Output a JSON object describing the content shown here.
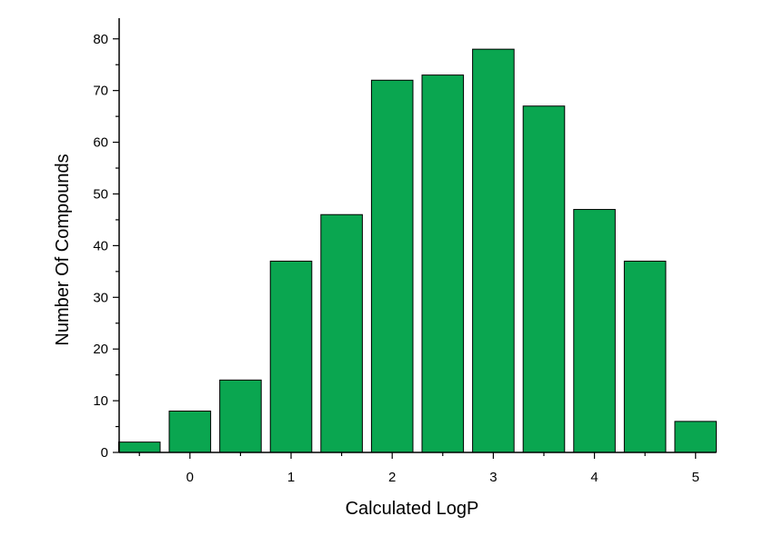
{
  "chart_data": {
    "type": "bar",
    "title": "",
    "xlabel": "Calculated LogP",
    "ylabel": "Number Of Compounds",
    "bin_centers": [
      -0.5,
      0,
      0.5,
      1,
      1.5,
      2,
      2.5,
      3,
      3.5,
      4,
      4.5,
      5
    ],
    "values": [
      2,
      8,
      14,
      37,
      46,
      72,
      73,
      78,
      67,
      47,
      37,
      6
    ],
    "xlim": [
      -0.7,
      5.2
    ],
    "ylim": [
      0,
      84
    ],
    "x_ticks": [
      0,
      1,
      2,
      3,
      4,
      5
    ],
    "x_tick_labels": [
      "0",
      "1",
      "2",
      "3",
      "4",
      "5"
    ],
    "y_ticks": [
      0,
      10,
      20,
      30,
      40,
      50,
      60,
      70,
      80
    ],
    "y_tick_labels": [
      "0",
      "10",
      "20",
      "30",
      "40",
      "50",
      "60",
      "70",
      "80"
    ],
    "bar_color": "#0aa650",
    "grid": false,
    "legend": "none"
  }
}
